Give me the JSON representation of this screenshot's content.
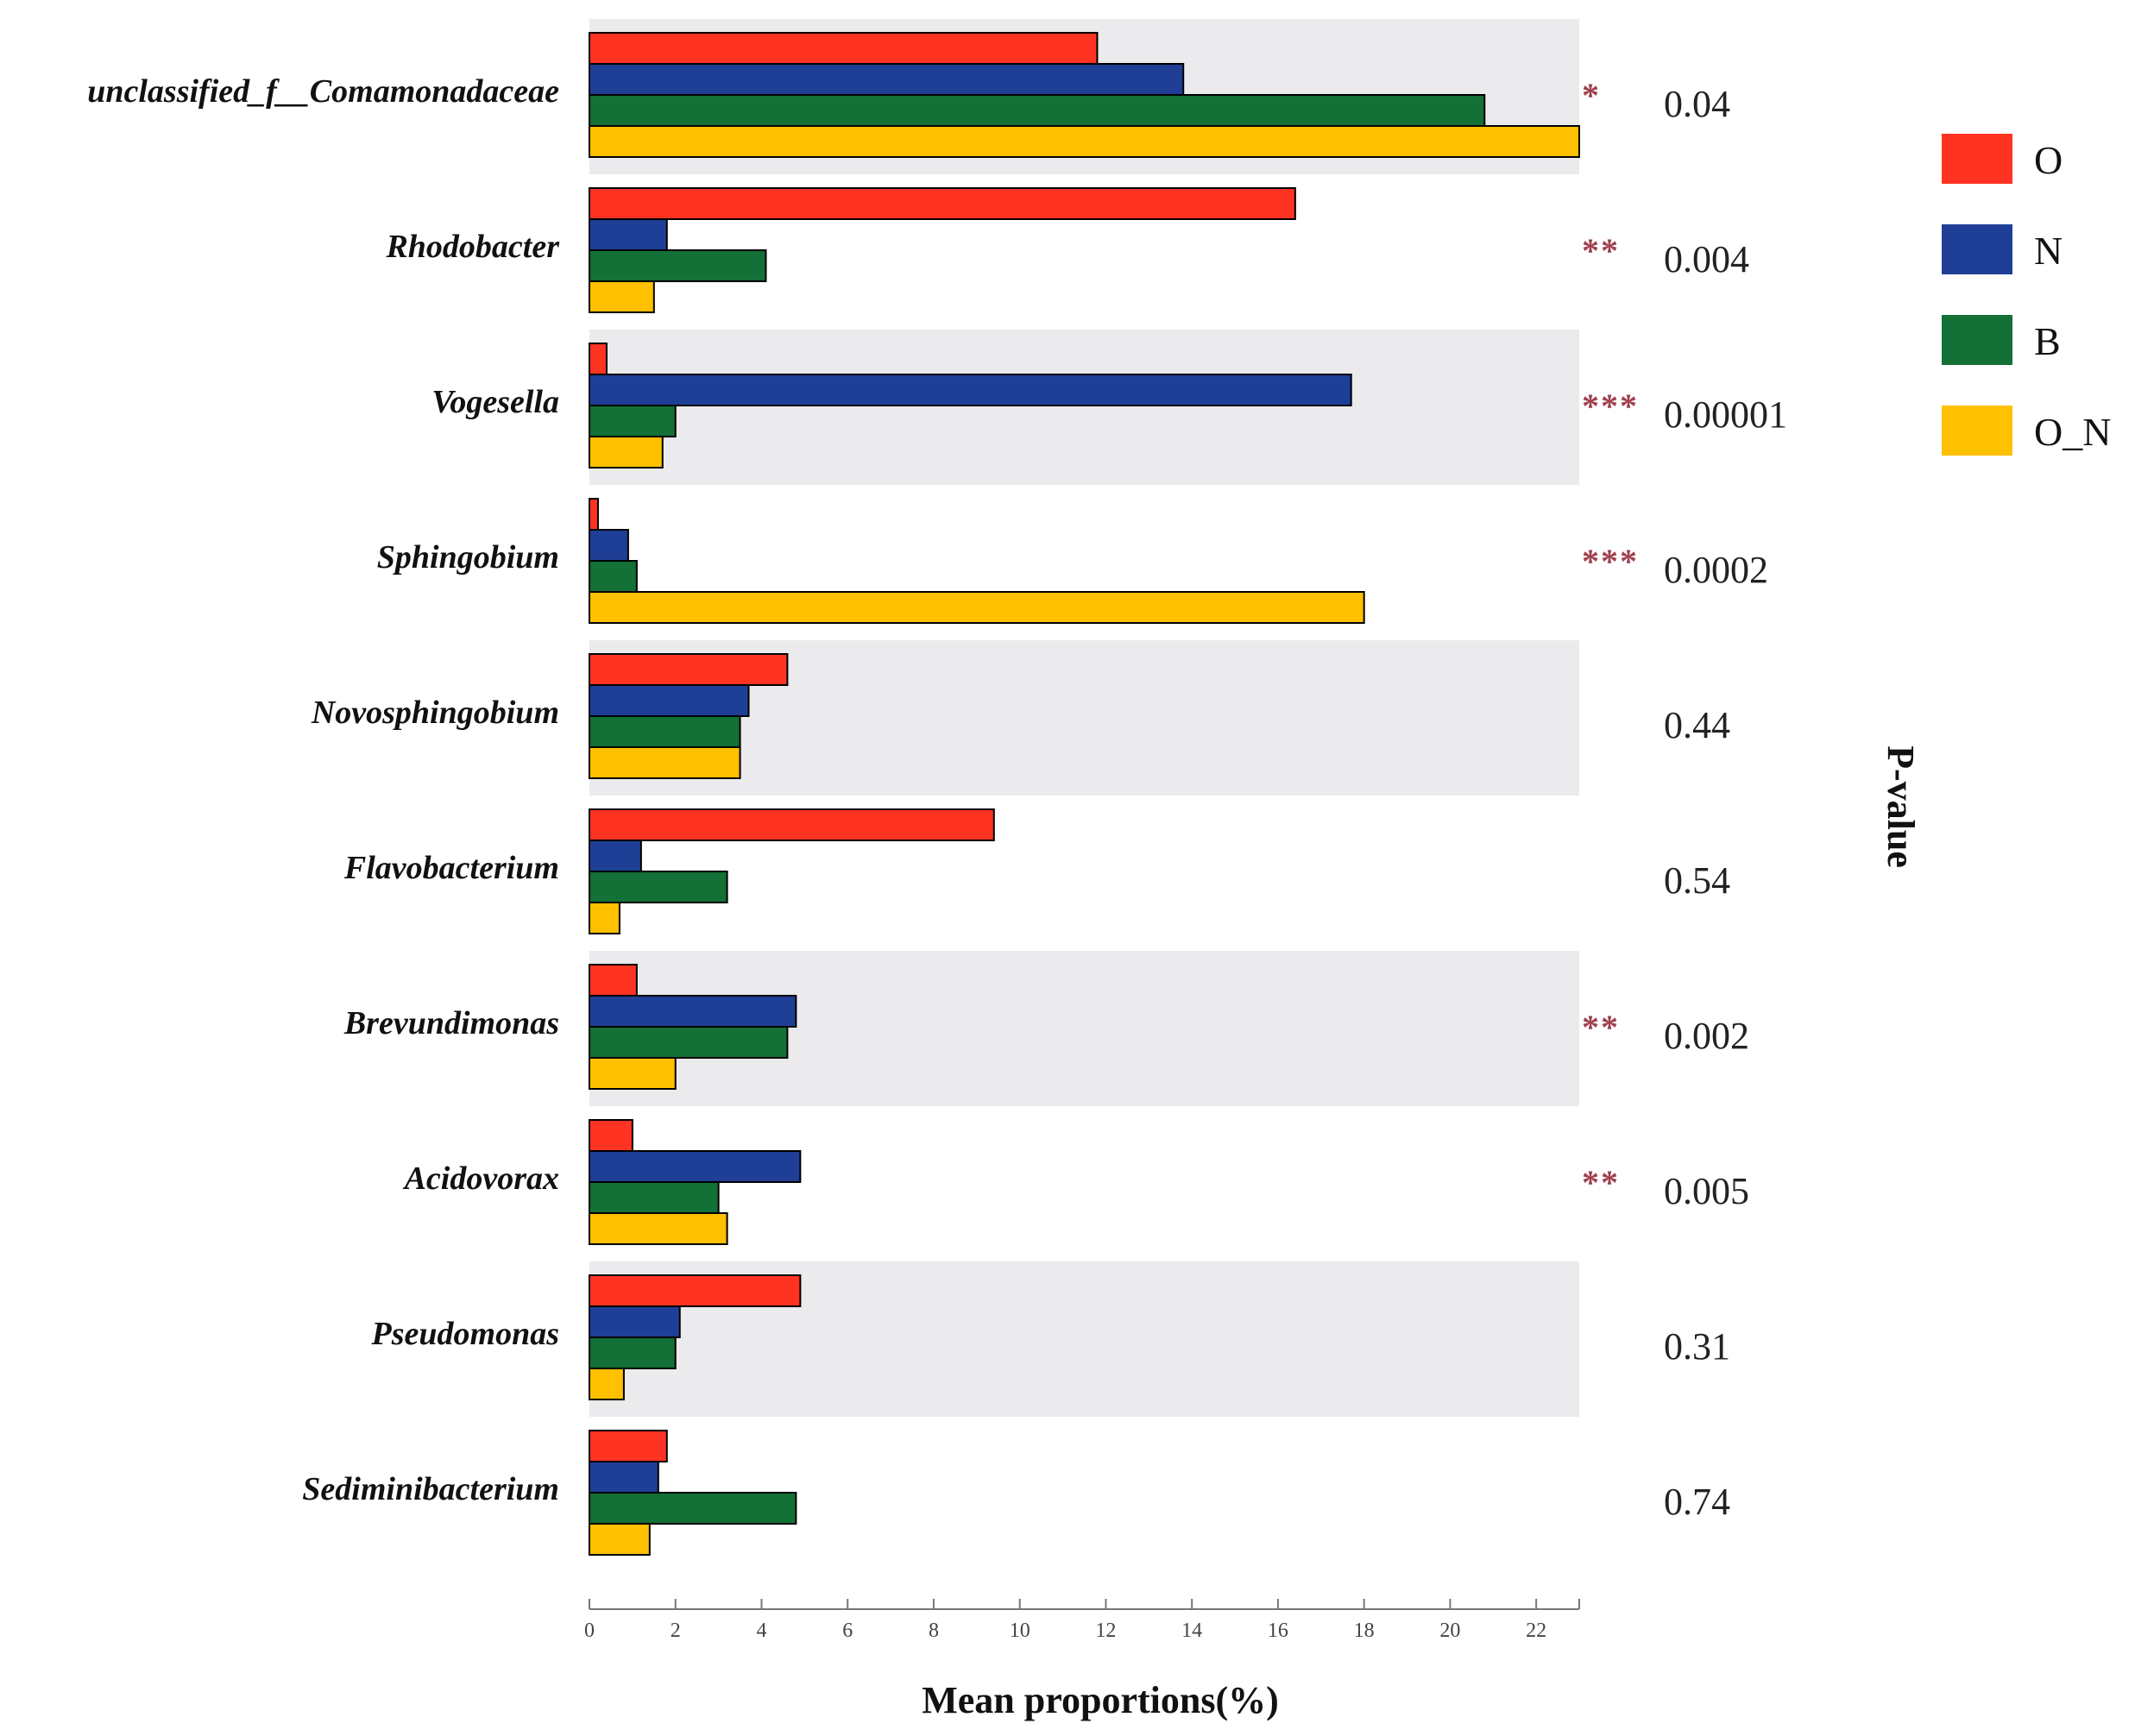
{
  "chart_data": {
    "type": "bar",
    "orientation": "horizontal",
    "xlabel": "Mean proportions(%)",
    "pvalue_label": "P-value",
    "xlim": [
      0,
      23
    ],
    "xticks": [
      0,
      2,
      4,
      6,
      8,
      10,
      12,
      14,
      16,
      18,
      20,
      22
    ],
    "legend_position": "top-right",
    "categories": [
      "unclassified_f__Comamonadaceae",
      "Rhodobacter",
      "Vogesella",
      "Sphingobium",
      "Novosphingobium",
      "Flavobacterium",
      "Brevundimonas",
      "Acidovorax",
      "Pseudomonas",
      "Sediminibacterium"
    ],
    "series": [
      {
        "name": "O",
        "color": "#ff3322",
        "values": [
          11.8,
          16.4,
          0.4,
          0.2,
          4.6,
          9.4,
          1.1,
          1.0,
          4.9,
          1.8
        ]
      },
      {
        "name": "N",
        "color": "#1f3f96",
        "values": [
          13.8,
          1.8,
          17.7,
          0.9,
          3.7,
          1.2,
          4.8,
          4.9,
          2.1,
          1.6
        ]
      },
      {
        "name": "B",
        "color": "#137036",
        "values": [
          20.8,
          4.1,
          2.0,
          1.1,
          3.5,
          3.2,
          4.6,
          3.0,
          2.0,
          4.8
        ]
      },
      {
        "name": "O_N",
        "color": "#ffc000",
        "values": [
          23.0,
          1.5,
          1.7,
          18.0,
          3.5,
          0.7,
          2.0,
          3.2,
          0.8,
          1.4
        ]
      }
    ],
    "significance": [
      "*",
      "**",
      "***",
      "***",
      "",
      "",
      "**",
      "**",
      "",
      ""
    ],
    "p_values": [
      "0.04",
      "0.004",
      "0.00001",
      "0.0002",
      "0.44",
      "0.54",
      "0.002",
      "0.005",
      "0.31",
      "0.74"
    ]
  }
}
